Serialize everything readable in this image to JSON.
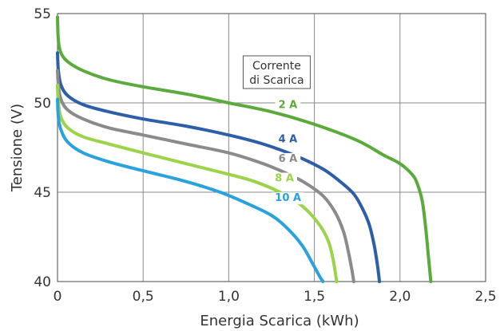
{
  "chart_data": {
    "type": "line",
    "xlabel": "Energia Scarica (kWh)",
    "ylabel": "Tensione (V)",
    "xlim": [
      0,
      2.5
    ],
    "ylim": [
      40,
      55
    ],
    "x_ticks": [
      0,
      0.5,
      1.0,
      1.5,
      2.0,
      2.5
    ],
    "x_tick_labels": [
      "0",
      "0,5",
      "1,0",
      "1,5",
      "2,0",
      "2,5"
    ],
    "y_ticks": [
      40,
      45,
      50,
      55
    ],
    "y_tick_labels": [
      "40",
      "45",
      "50",
      "55"
    ],
    "grid": true,
    "legend_title_lines": [
      "Corrente",
      "di Scarica"
    ],
    "legend_placement": "center",
    "series": [
      {
        "name": "2 A",
        "color": "#5aab3c",
        "label_at": [
          1.29,
          49.7
        ],
        "points": [
          [
            0,
            54.8
          ],
          [
            0.005,
            53.5
          ],
          [
            0.02,
            52.8
          ],
          [
            0.06,
            52.3
          ],
          [
            0.15,
            51.8
          ],
          [
            0.3,
            51.3
          ],
          [
            0.5,
            50.9
          ],
          [
            0.75,
            50.5
          ],
          [
            1.0,
            50.0
          ],
          [
            1.25,
            49.5
          ],
          [
            1.5,
            48.8
          ],
          [
            1.75,
            47.9
          ],
          [
            1.9,
            47.1
          ],
          [
            2.0,
            46.6
          ],
          [
            2.07,
            46.0
          ],
          [
            2.1,
            45.5
          ],
          [
            2.13,
            44.5
          ],
          [
            2.15,
            43.0
          ],
          [
            2.165,
            41.5
          ],
          [
            2.18,
            40.0
          ]
        ]
      },
      {
        "name": "4 A",
        "color": "#2e5ea8",
        "label_at": [
          1.29,
          47.8
        ],
        "points": [
          [
            0,
            52.8
          ],
          [
            0.005,
            51.8
          ],
          [
            0.02,
            51.0
          ],
          [
            0.06,
            50.4
          ],
          [
            0.15,
            49.9
          ],
          [
            0.3,
            49.5
          ],
          [
            0.5,
            49.1
          ],
          [
            0.75,
            48.7
          ],
          [
            1.0,
            48.2
          ],
          [
            1.2,
            47.7
          ],
          [
            1.4,
            47.0
          ],
          [
            1.55,
            46.3
          ],
          [
            1.65,
            45.6
          ],
          [
            1.73,
            44.9
          ],
          [
            1.78,
            44.1
          ],
          [
            1.82,
            43.2
          ],
          [
            1.85,
            42.0
          ],
          [
            1.87,
            40.8
          ],
          [
            1.88,
            40.0
          ]
        ]
      },
      {
        "name": "6 A",
        "color": "#8b8b8b",
        "label_at": [
          1.29,
          46.7
        ],
        "points": [
          [
            0,
            51.8
          ],
          [
            0.005,
            51.0
          ],
          [
            0.02,
            50.2
          ],
          [
            0.06,
            49.6
          ],
          [
            0.15,
            49.1
          ],
          [
            0.3,
            48.6
          ],
          [
            0.5,
            48.2
          ],
          [
            0.75,
            47.7
          ],
          [
            1.0,
            47.2
          ],
          [
            1.2,
            46.6
          ],
          [
            1.35,
            46.0
          ],
          [
            1.45,
            45.5
          ],
          [
            1.55,
            44.8
          ],
          [
            1.62,
            43.9
          ],
          [
            1.67,
            42.8
          ],
          [
            1.7,
            41.6
          ],
          [
            1.72,
            40.6
          ],
          [
            1.73,
            40.0
          ]
        ]
      },
      {
        "name": "8 A",
        "color": "#9bd34a",
        "label_at": [
          1.27,
          45.6
        ],
        "points": [
          [
            0,
            51.0
          ],
          [
            0.005,
            50.0
          ],
          [
            0.02,
            49.2
          ],
          [
            0.06,
            48.6
          ],
          [
            0.15,
            48.1
          ],
          [
            0.3,
            47.7
          ],
          [
            0.5,
            47.2
          ],
          [
            0.75,
            46.6
          ],
          [
            1.0,
            46.0
          ],
          [
            1.15,
            45.6
          ],
          [
            1.3,
            45.0
          ],
          [
            1.42,
            44.3
          ],
          [
            1.52,
            43.3
          ],
          [
            1.58,
            42.3
          ],
          [
            1.61,
            41.2
          ],
          [
            1.63,
            40.0
          ]
        ]
      },
      {
        "name": "10 A",
        "color": "#29a2dd",
        "label_at": [
          1.27,
          44.5
        ],
        "points": [
          [
            0,
            50.2
          ],
          [
            0.005,
            49.2
          ],
          [
            0.02,
            48.5
          ],
          [
            0.06,
            47.8
          ],
          [
            0.15,
            47.2
          ],
          [
            0.3,
            46.7
          ],
          [
            0.5,
            46.2
          ],
          [
            0.75,
            45.6
          ],
          [
            0.95,
            45.0
          ],
          [
            1.1,
            44.4
          ],
          [
            1.25,
            43.7
          ],
          [
            1.35,
            42.9
          ],
          [
            1.43,
            42.0
          ],
          [
            1.49,
            41.0
          ],
          [
            1.53,
            40.3
          ],
          [
            1.55,
            40.0
          ]
        ]
      }
    ]
  }
}
